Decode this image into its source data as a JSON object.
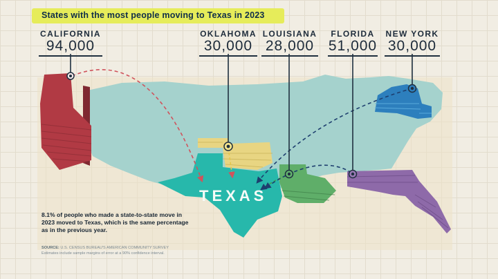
{
  "title": "States with the most people moving to Texas in 2023",
  "origins": [
    {
      "state": "CALIFORNIA",
      "count": "94,000",
      "color": "#b13a44"
    },
    {
      "state": "OKLAHOMA",
      "count": "30,000",
      "color": "#e8d582"
    },
    {
      "state": "LOUISIANA",
      "count": "28,000",
      "color": "#5fae69"
    },
    {
      "state": "FLORIDA",
      "count": "51,000",
      "color": "#8e6aa9"
    },
    {
      "state": "NEW YORK",
      "count": "30,000",
      "color": "#2d7fbd"
    }
  ],
  "destination": {
    "label": "TEXAS",
    "color": "#27b8ab"
  },
  "note": "8.1% of people who made a state-to-state move in 2023 moved to Texas, which is the same percentage as in the previous year.",
  "source": {
    "label": "SOURCE:",
    "text": "U.S. CENSUS BUREAU'S AMERICAN COMMUNITY SURVEY",
    "footnote": "Estimates include sample margins of error at a 90% confidence interval."
  },
  "colors": {
    "us_land": "#a5d2cd",
    "arrow": "#1d3e6e",
    "california_arrow": "#d0535c"
  }
}
